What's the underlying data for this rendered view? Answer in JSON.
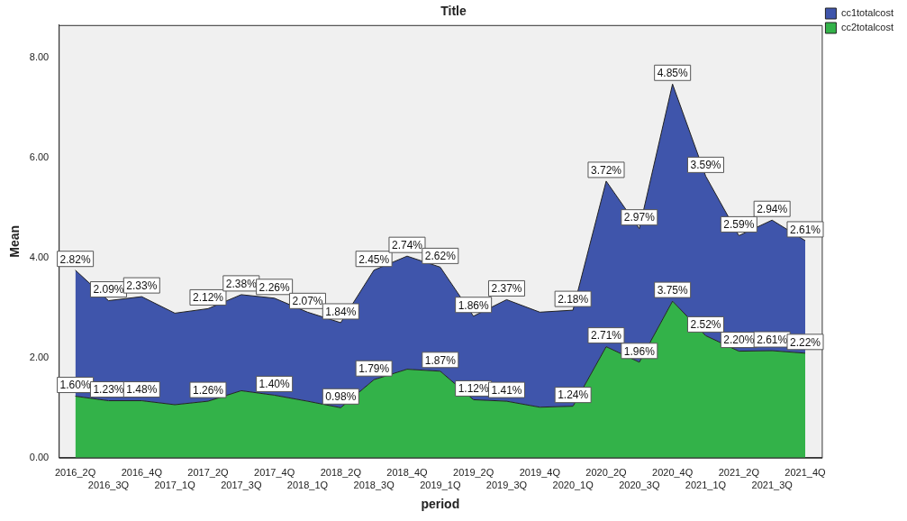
{
  "chart_data": {
    "type": "area",
    "stacked": true,
    "title": "Title",
    "xlabel": "period",
    "ylabel": "Mean",
    "categories": [
      "2016_2Q",
      "2016_3Q",
      "2016_4Q",
      "2017_1Q",
      "2017_2Q",
      "2017_3Q",
      "2017_4Q",
      "2018_1Q",
      "2018_2Q",
      "2018_3Q",
      "2018_4Q",
      "2019_1Q",
      "2019_2Q",
      "2019_3Q",
      "2019_4Q",
      "2020_1Q",
      "2020_2Q",
      "2020_3Q",
      "2020_4Q",
      "2021_1Q",
      "2021_2Q",
      "2021_3Q",
      "2021_4Q"
    ],
    "series": [
      {
        "name": "cc2totalcost",
        "color": "#33b249",
        "values": [
          1.23,
          1.14,
          1.14,
          1.06,
          1.13,
          1.34,
          1.25,
          1.13,
          1.0,
          1.56,
          1.77,
          1.73,
          1.16,
          1.13,
          1.01,
          1.03,
          2.22,
          1.91,
          3.13,
          2.44,
          2.13,
          2.14,
          2.09
        ]
      },
      {
        "name": "cc1totalcost",
        "color": "#3f55ab",
        "values": [
          2.52,
          2.0,
          2.08,
          1.83,
          1.85,
          1.92,
          1.94,
          1.78,
          1.7,
          2.19,
          2.26,
          2.08,
          1.67,
          2.03,
          1.9,
          1.92,
          3.31,
          2.67,
          4.34,
          3.19,
          2.31,
          2.61,
          2.25
        ]
      }
    ],
    "annotations": [
      {
        "text": "1.60%",
        "x": "2016_2Q",
        "y": 1.23
      },
      {
        "text": "1.23%",
        "x": "2016_3Q",
        "y": 1.14
      },
      {
        "text": "1.48%",
        "x": "2016_4Q",
        "y": 1.14
      },
      {
        "text": "1.26%",
        "x": "2017_2Q",
        "y": 1.13
      },
      {
        "text": "1.40%",
        "x": "2017_4Q",
        "y": 1.25
      },
      {
        "text": "0.98%",
        "x": "2018_2Q",
        "y": 1.0
      },
      {
        "text": "1.79%",
        "x": "2018_3Q",
        "y": 1.56
      },
      {
        "text": "1.87%",
        "x": "2019_1Q",
        "y": 1.73
      },
      {
        "text": "1.12%",
        "x": "2019_2Q",
        "y": 1.16
      },
      {
        "text": "1.41%",
        "x": "2019_3Q",
        "y": 1.13
      },
      {
        "text": "1.24%",
        "x": "2020_1Q",
        "y": 1.03
      },
      {
        "text": "2.71%",
        "x": "2020_2Q",
        "y": 2.22
      },
      {
        "text": "1.96%",
        "x": "2020_3Q",
        "y": 1.91
      },
      {
        "text": "3.75%",
        "x": "2020_4Q",
        "y": 3.13
      },
      {
        "text": "2.52%",
        "x": "2021_1Q",
        "y": 2.44
      },
      {
        "text": "2.20%",
        "x": "2021_2Q",
        "y": 2.13
      },
      {
        "text": "2.61%",
        "x": "2021_3Q",
        "y": 2.14
      },
      {
        "text": "2.22%",
        "x": "2021_4Q",
        "y": 2.09
      },
      {
        "text": "2.82%",
        "x": "2016_2Q",
        "y": 3.75
      },
      {
        "text": "2.09%",
        "x": "2016_3Q",
        "y": 3.14
      },
      {
        "text": "2.33%",
        "x": "2016_4Q",
        "y": 3.22
      },
      {
        "text": "2.12%",
        "x": "2017_2Q",
        "y": 2.98
      },
      {
        "text": "2.38%",
        "x": "2017_3Q",
        "y": 3.26
      },
      {
        "text": "2.26%",
        "x": "2017_4Q",
        "y": 3.19
      },
      {
        "text": "2.07%",
        "x": "2018_1Q",
        "y": 2.91
      },
      {
        "text": "1.84%",
        "x": "2018_2Q",
        "y": 2.7
      },
      {
        "text": "2.45%",
        "x": "2018_3Q",
        "y": 3.75
      },
      {
        "text": "2.74%",
        "x": "2018_4Q",
        "y": 4.03
      },
      {
        "text": "2.62%",
        "x": "2019_1Q",
        "y": 3.81
      },
      {
        "text": "1.86%",
        "x": "2019_2Q",
        "y": 2.83
      },
      {
        "text": "2.37%",
        "x": "2019_3Q",
        "y": 3.16
      },
      {
        "text": "2.18%",
        "x": "2020_1Q",
        "y": 2.95
      },
      {
        "text": "3.72%",
        "x": "2020_2Q",
        "y": 5.53
      },
      {
        "text": "2.97%",
        "x": "2020_3Q",
        "y": 4.58
      },
      {
        "text": "4.85%",
        "x": "2020_4Q",
        "y": 7.47
      },
      {
        "text": "3.59%",
        "x": "2021_1Q",
        "y": 5.63
      },
      {
        "text": "2.59%",
        "x": "2021_2Q",
        "y": 4.44
      },
      {
        "text": "2.94%",
        "x": "2021_3Q",
        "y": 4.75
      },
      {
        "text": "2.61%",
        "x": "2021_4Q",
        "y": 4.34
      }
    ],
    "ylim": [
      0,
      8.65
    ],
    "yticks": [
      {
        "value": 0,
        "label": "0.00"
      },
      {
        "value": 2,
        "label": "2.00"
      },
      {
        "value": 4,
        "label": "4.00"
      },
      {
        "value": 6,
        "label": "6.00"
      },
      {
        "value": 8,
        "label": "8.00"
      }
    ],
    "grid": false,
    "legend": "top right",
    "marker": "none"
  }
}
